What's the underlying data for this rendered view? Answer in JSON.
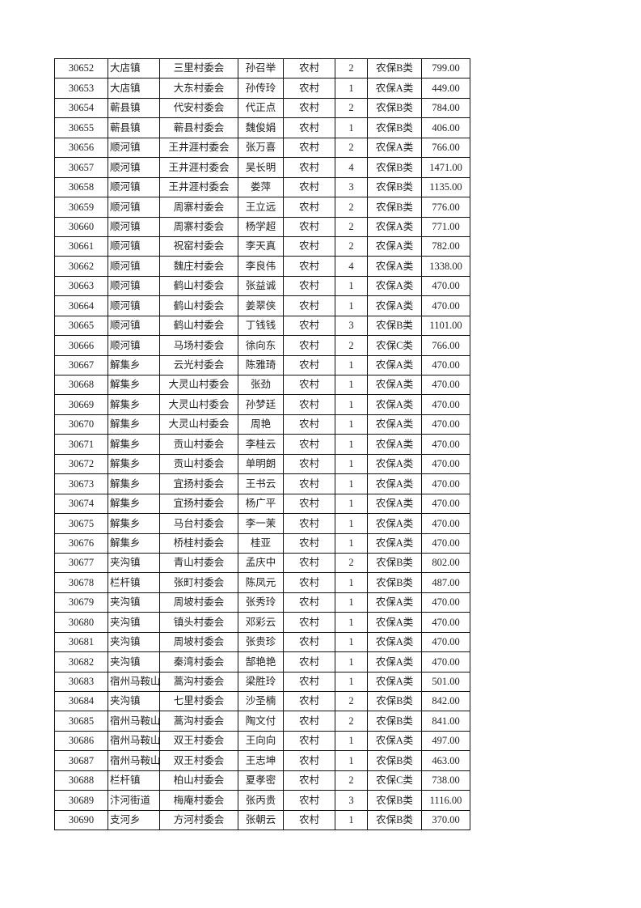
{
  "table": {
    "rows": [
      [
        "30652",
        "大店镇",
        "三里村委会",
        "孙召举",
        "农村",
        "2",
        "农保B类",
        "799.00"
      ],
      [
        "30653",
        "大店镇",
        "大东村委会",
        "孙传玲",
        "农村",
        "1",
        "农保A类",
        "449.00"
      ],
      [
        "30654",
        "蕲县镇",
        "代安村委会",
        "代正点",
        "农村",
        "2",
        "农保B类",
        "784.00"
      ],
      [
        "30655",
        "蕲县镇",
        "蕲县村委会",
        "魏俊娟",
        "农村",
        "1",
        "农保B类",
        "406.00"
      ],
      [
        "30656",
        "顺河镇",
        "王井涯村委会",
        "张万喜",
        "农村",
        "2",
        "农保A类",
        "766.00"
      ],
      [
        "30657",
        "顺河镇",
        "王井涯村委会",
        "吴长明",
        "农村",
        "4",
        "农保B类",
        "1471.00"
      ],
      [
        "30658",
        "顺河镇",
        "王井涯村委会",
        "娄萍",
        "农村",
        "3",
        "农保B类",
        "1135.00"
      ],
      [
        "30659",
        "顺河镇",
        "周寨村委会",
        "王立远",
        "农村",
        "2",
        "农保B类",
        "776.00"
      ],
      [
        "30660",
        "顺河镇",
        "周寨村委会",
        "杨学超",
        "农村",
        "2",
        "农保A类",
        "771.00"
      ],
      [
        "30661",
        "顺河镇",
        "祝窑村委会",
        "李天真",
        "农村",
        "2",
        "农保A类",
        "782.00"
      ],
      [
        "30662",
        "顺河镇",
        "魏庄村委会",
        "李良伟",
        "农村",
        "4",
        "农保A类",
        "1338.00"
      ],
      [
        "30663",
        "顺河镇",
        "鹤山村委会",
        "张益诚",
        "农村",
        "1",
        "农保A类",
        "470.00"
      ],
      [
        "30664",
        "顺河镇",
        "鹤山村委会",
        "姜翠侠",
        "农村",
        "1",
        "农保A类",
        "470.00"
      ],
      [
        "30665",
        "顺河镇",
        "鹤山村委会",
        "丁钱钱",
        "农村",
        "3",
        "农保B类",
        "1101.00"
      ],
      [
        "30666",
        "顺河镇",
        "马场村委会",
        "徐向东",
        "农村",
        "2",
        "农保C类",
        "766.00"
      ],
      [
        "30667",
        "解集乡",
        "云光村委会",
        "陈雅琦",
        "农村",
        "1",
        "农保A类",
        "470.00"
      ],
      [
        "30668",
        "解集乡",
        "大灵山村委会",
        "张劲",
        "农村",
        "1",
        "农保A类",
        "470.00"
      ],
      [
        "30669",
        "解集乡",
        "大灵山村委会",
        "孙梦廷",
        "农村",
        "1",
        "农保A类",
        "470.00"
      ],
      [
        "30670",
        "解集乡",
        "大灵山村委会",
        "周艳",
        "农村",
        "1",
        "农保A类",
        "470.00"
      ],
      [
        "30671",
        "解集乡",
        "贡山村委会",
        "李桂云",
        "农村",
        "1",
        "农保A类",
        "470.00"
      ],
      [
        "30672",
        "解集乡",
        "贡山村委会",
        "单明朗",
        "农村",
        "1",
        "农保A类",
        "470.00"
      ],
      [
        "30673",
        "解集乡",
        "宜扬村委会",
        "王书云",
        "农村",
        "1",
        "农保A类",
        "470.00"
      ],
      [
        "30674",
        "解集乡",
        "宜扬村委会",
        "杨广平",
        "农村",
        "1",
        "农保A类",
        "470.00"
      ],
      [
        "30675",
        "解集乡",
        "马台村委会",
        "李一茉",
        "农村",
        "1",
        "农保A类",
        "470.00"
      ],
      [
        "30676",
        "解集乡",
        "桥桂村委会",
        "桂亚",
        "农村",
        "1",
        "农保A类",
        "470.00"
      ],
      [
        "30677",
        "夹沟镇",
        "青山村委会",
        "孟庆中",
        "农村",
        "2",
        "农保B类",
        "802.00"
      ],
      [
        "30678",
        "栏杆镇",
        "张町村委会",
        "陈凤元",
        "农村",
        "1",
        "农保B类",
        "487.00"
      ],
      [
        "30679",
        "夹沟镇",
        "周坡村委会",
        "张秀玲",
        "农村",
        "1",
        "农保A类",
        "470.00"
      ],
      [
        "30680",
        "夹沟镇",
        "镇头村委会",
        "邓彩云",
        "农村",
        "1",
        "农保A类",
        "470.00"
      ],
      [
        "30681",
        "夹沟镇",
        "周坡村委会",
        "张贵珍",
        "农村",
        "1",
        "农保A类",
        "470.00"
      ],
      [
        "30682",
        "夹沟镇",
        "秦湾村委会",
        "郜艳艳",
        "农村",
        "1",
        "农保A类",
        "470.00"
      ],
      [
        "30683",
        "宿州马鞍山",
        "蒿沟村委会",
        "梁胜玲",
        "农村",
        "1",
        "农保A类",
        "501.00"
      ],
      [
        "30684",
        "夹沟镇",
        "七里村委会",
        "沙圣楠",
        "农村",
        "2",
        "农保B类",
        "842.00"
      ],
      [
        "30685",
        "宿州马鞍山",
        "蒿沟村委会",
        "陶文付",
        "农村",
        "2",
        "农保B类",
        "841.00"
      ],
      [
        "30686",
        "宿州马鞍山",
        "双王村委会",
        "王向向",
        "农村",
        "1",
        "农保A类",
        "497.00"
      ],
      [
        "30687",
        "宿州马鞍山",
        "双王村委会",
        "王志坤",
        "农村",
        "1",
        "农保B类",
        "463.00"
      ],
      [
        "30688",
        "栏杆镇",
        "柏山村委会",
        "夏孝密",
        "农村",
        "2",
        "农保C类",
        "738.00"
      ],
      [
        "30689",
        "汴河街道",
        "梅庵村委会",
        "张丙贵",
        "农村",
        "3",
        "农保B类",
        "1116.00"
      ],
      [
        "30690",
        "支河乡",
        "方河村委会",
        "张朝云",
        "农村",
        "1",
        "农保B类",
        "370.00"
      ]
    ]
  }
}
